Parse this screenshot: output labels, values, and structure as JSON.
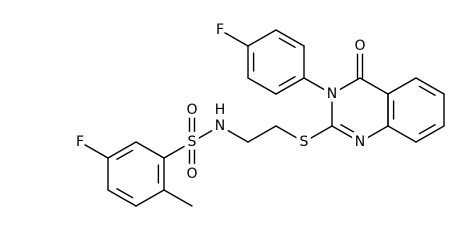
{
  "labels": [
    {
      "text": "F"
    },
    {
      "text": "O"
    },
    {
      "text": "N"
    },
    {
      "text": "N"
    },
    {
      "text": "S"
    },
    {
      "text": "H"
    },
    {
      "text": "N"
    },
    {
      "text": "S"
    },
    {
      "text": "O"
    },
    {
      "text": "O"
    },
    {
      "text": "F"
    }
  ]
}
